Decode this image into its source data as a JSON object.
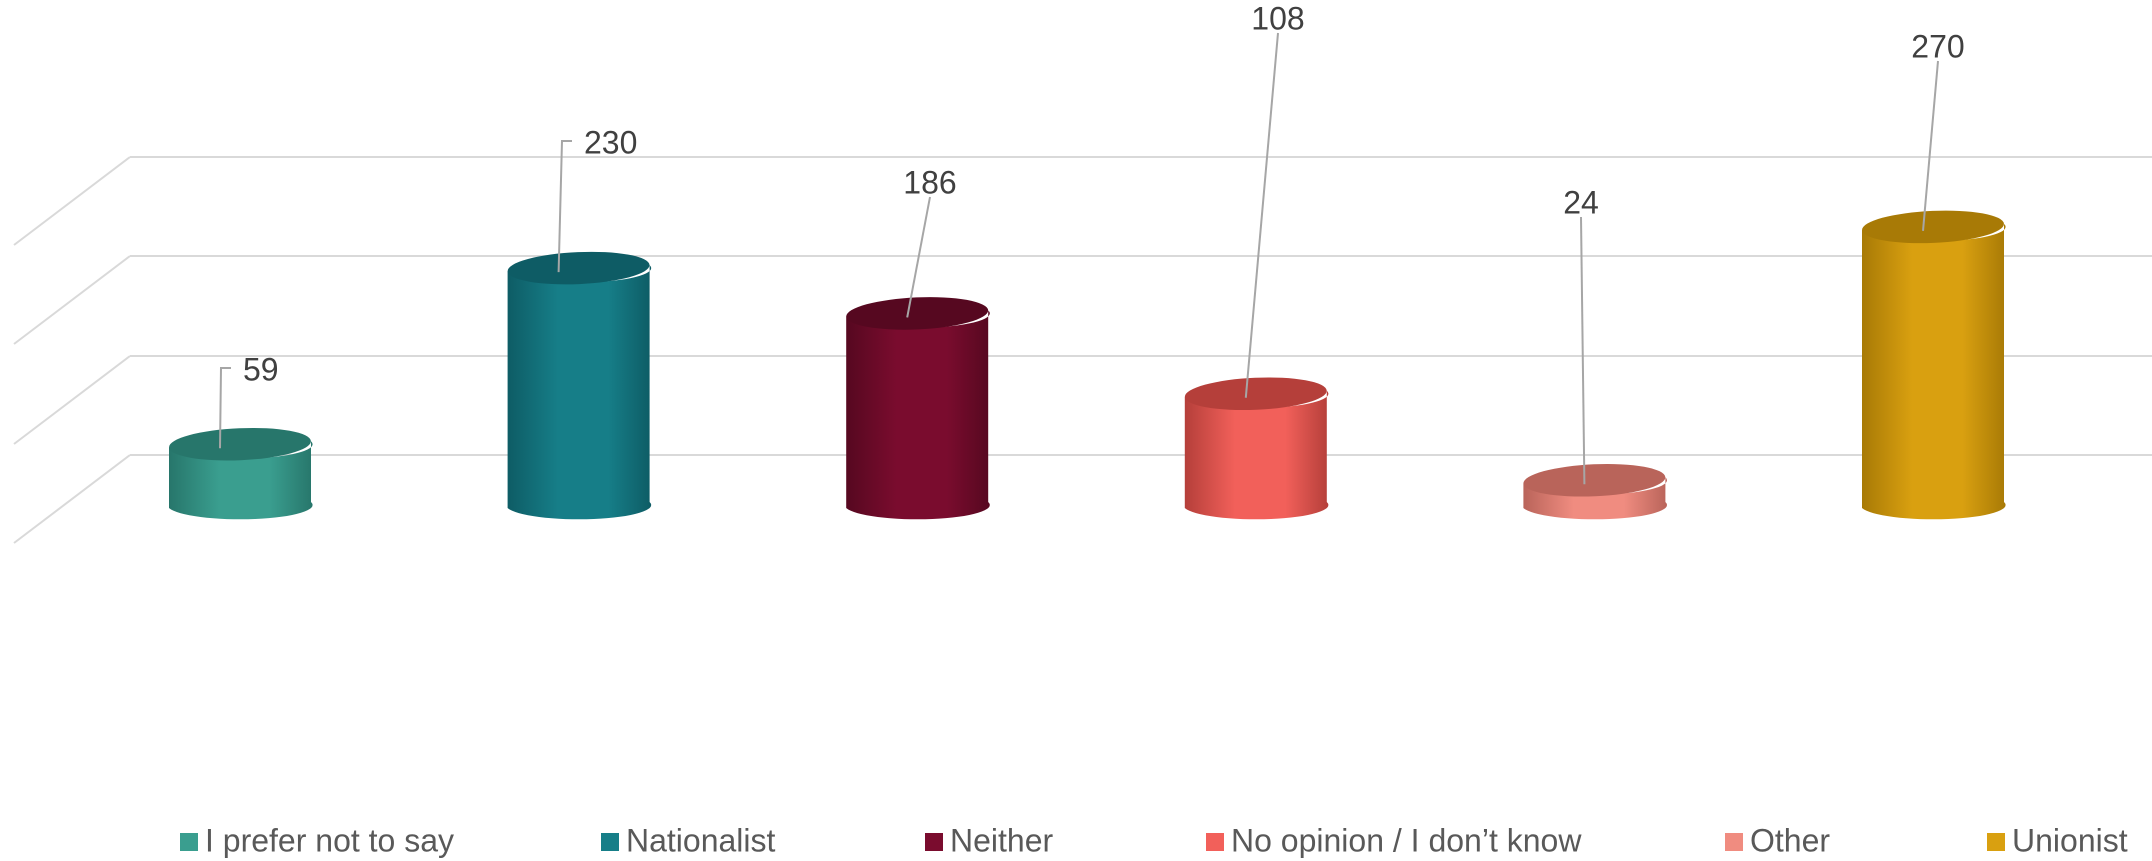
{
  "chart_data": {
    "type": "bar",
    "style": "3d-cylinder",
    "title": "",
    "xlabel": "",
    "ylabel": "",
    "ylim": [
      0,
      270
    ],
    "grid": true,
    "legend_position": "bottom",
    "categories": [
      "I prefer not to say",
      "Nationalist",
      "Neither",
      "No opinion / I don’t know",
      "Other",
      "Unionist"
    ],
    "values": [
      59,
      230,
      186,
      108,
      24,
      270
    ],
    "colors": [
      "#3A9E8F",
      "#167E88",
      "#7A0C2E",
      "#F2605A",
      "#F08C80",
      "#D9A010"
    ],
    "dark_colors": [
      "#27766B",
      "#0E5C65",
      "#560820",
      "#B53F3A",
      "#B9645A",
      "#A87A06"
    ]
  }
}
